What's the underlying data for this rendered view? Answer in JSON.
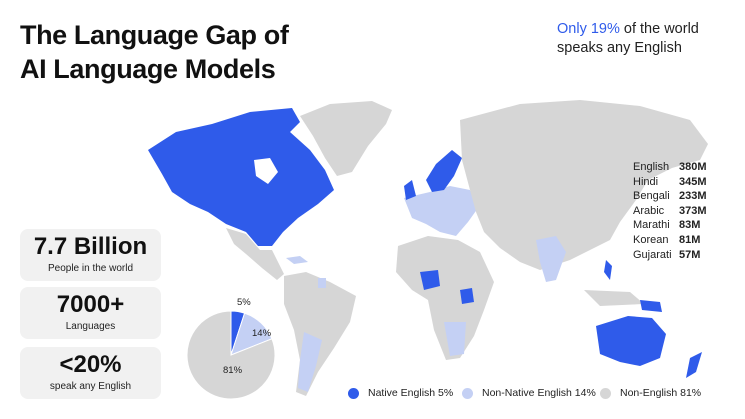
{
  "title": "The Language Gap of AI Language Models",
  "subtitle": {
    "accent": "Only 19%",
    "rest": " of the world speaks any English"
  },
  "stats": [
    {
      "value": "7.7 Billion",
      "label": "People in the world"
    },
    {
      "value": "7000+",
      "label": "Languages"
    },
    {
      "value": "<20%",
      "label": "speak any English"
    }
  ],
  "languages": [
    {
      "name": "English",
      "value": "380M"
    },
    {
      "name": "Hindi",
      "value": "345M"
    },
    {
      "name": "Bengali",
      "value": "233M"
    },
    {
      "name": "Arabic",
      "value": "373M"
    },
    {
      "name": "Marathi",
      "value": "83M"
    },
    {
      "name": "Korean",
      "value": "81M"
    },
    {
      "name": "Gujarati",
      "value": "57M"
    }
  ],
  "pie": {
    "slices": [
      {
        "label": "5%",
        "value": 5,
        "color": "#2f5bea"
      },
      {
        "label": "14%",
        "value": 14,
        "color": "#c4d0f4"
      },
      {
        "label": "81%",
        "value": 81,
        "color": "#d6d6d6"
      }
    ]
  },
  "legend": [
    {
      "label": "Native English 5%",
      "color": "#2f5bea"
    },
    {
      "label": "Non-Native English 14%",
      "color": "#c4d0f4"
    },
    {
      "label": "Non-English 81%",
      "color": "#d6d6d6"
    }
  ],
  "colors": {
    "native": "#2f5bea",
    "nonNative": "#c4d0f4",
    "nonEnglish": "#d6d6d6",
    "accent": "#2f5bea"
  }
}
